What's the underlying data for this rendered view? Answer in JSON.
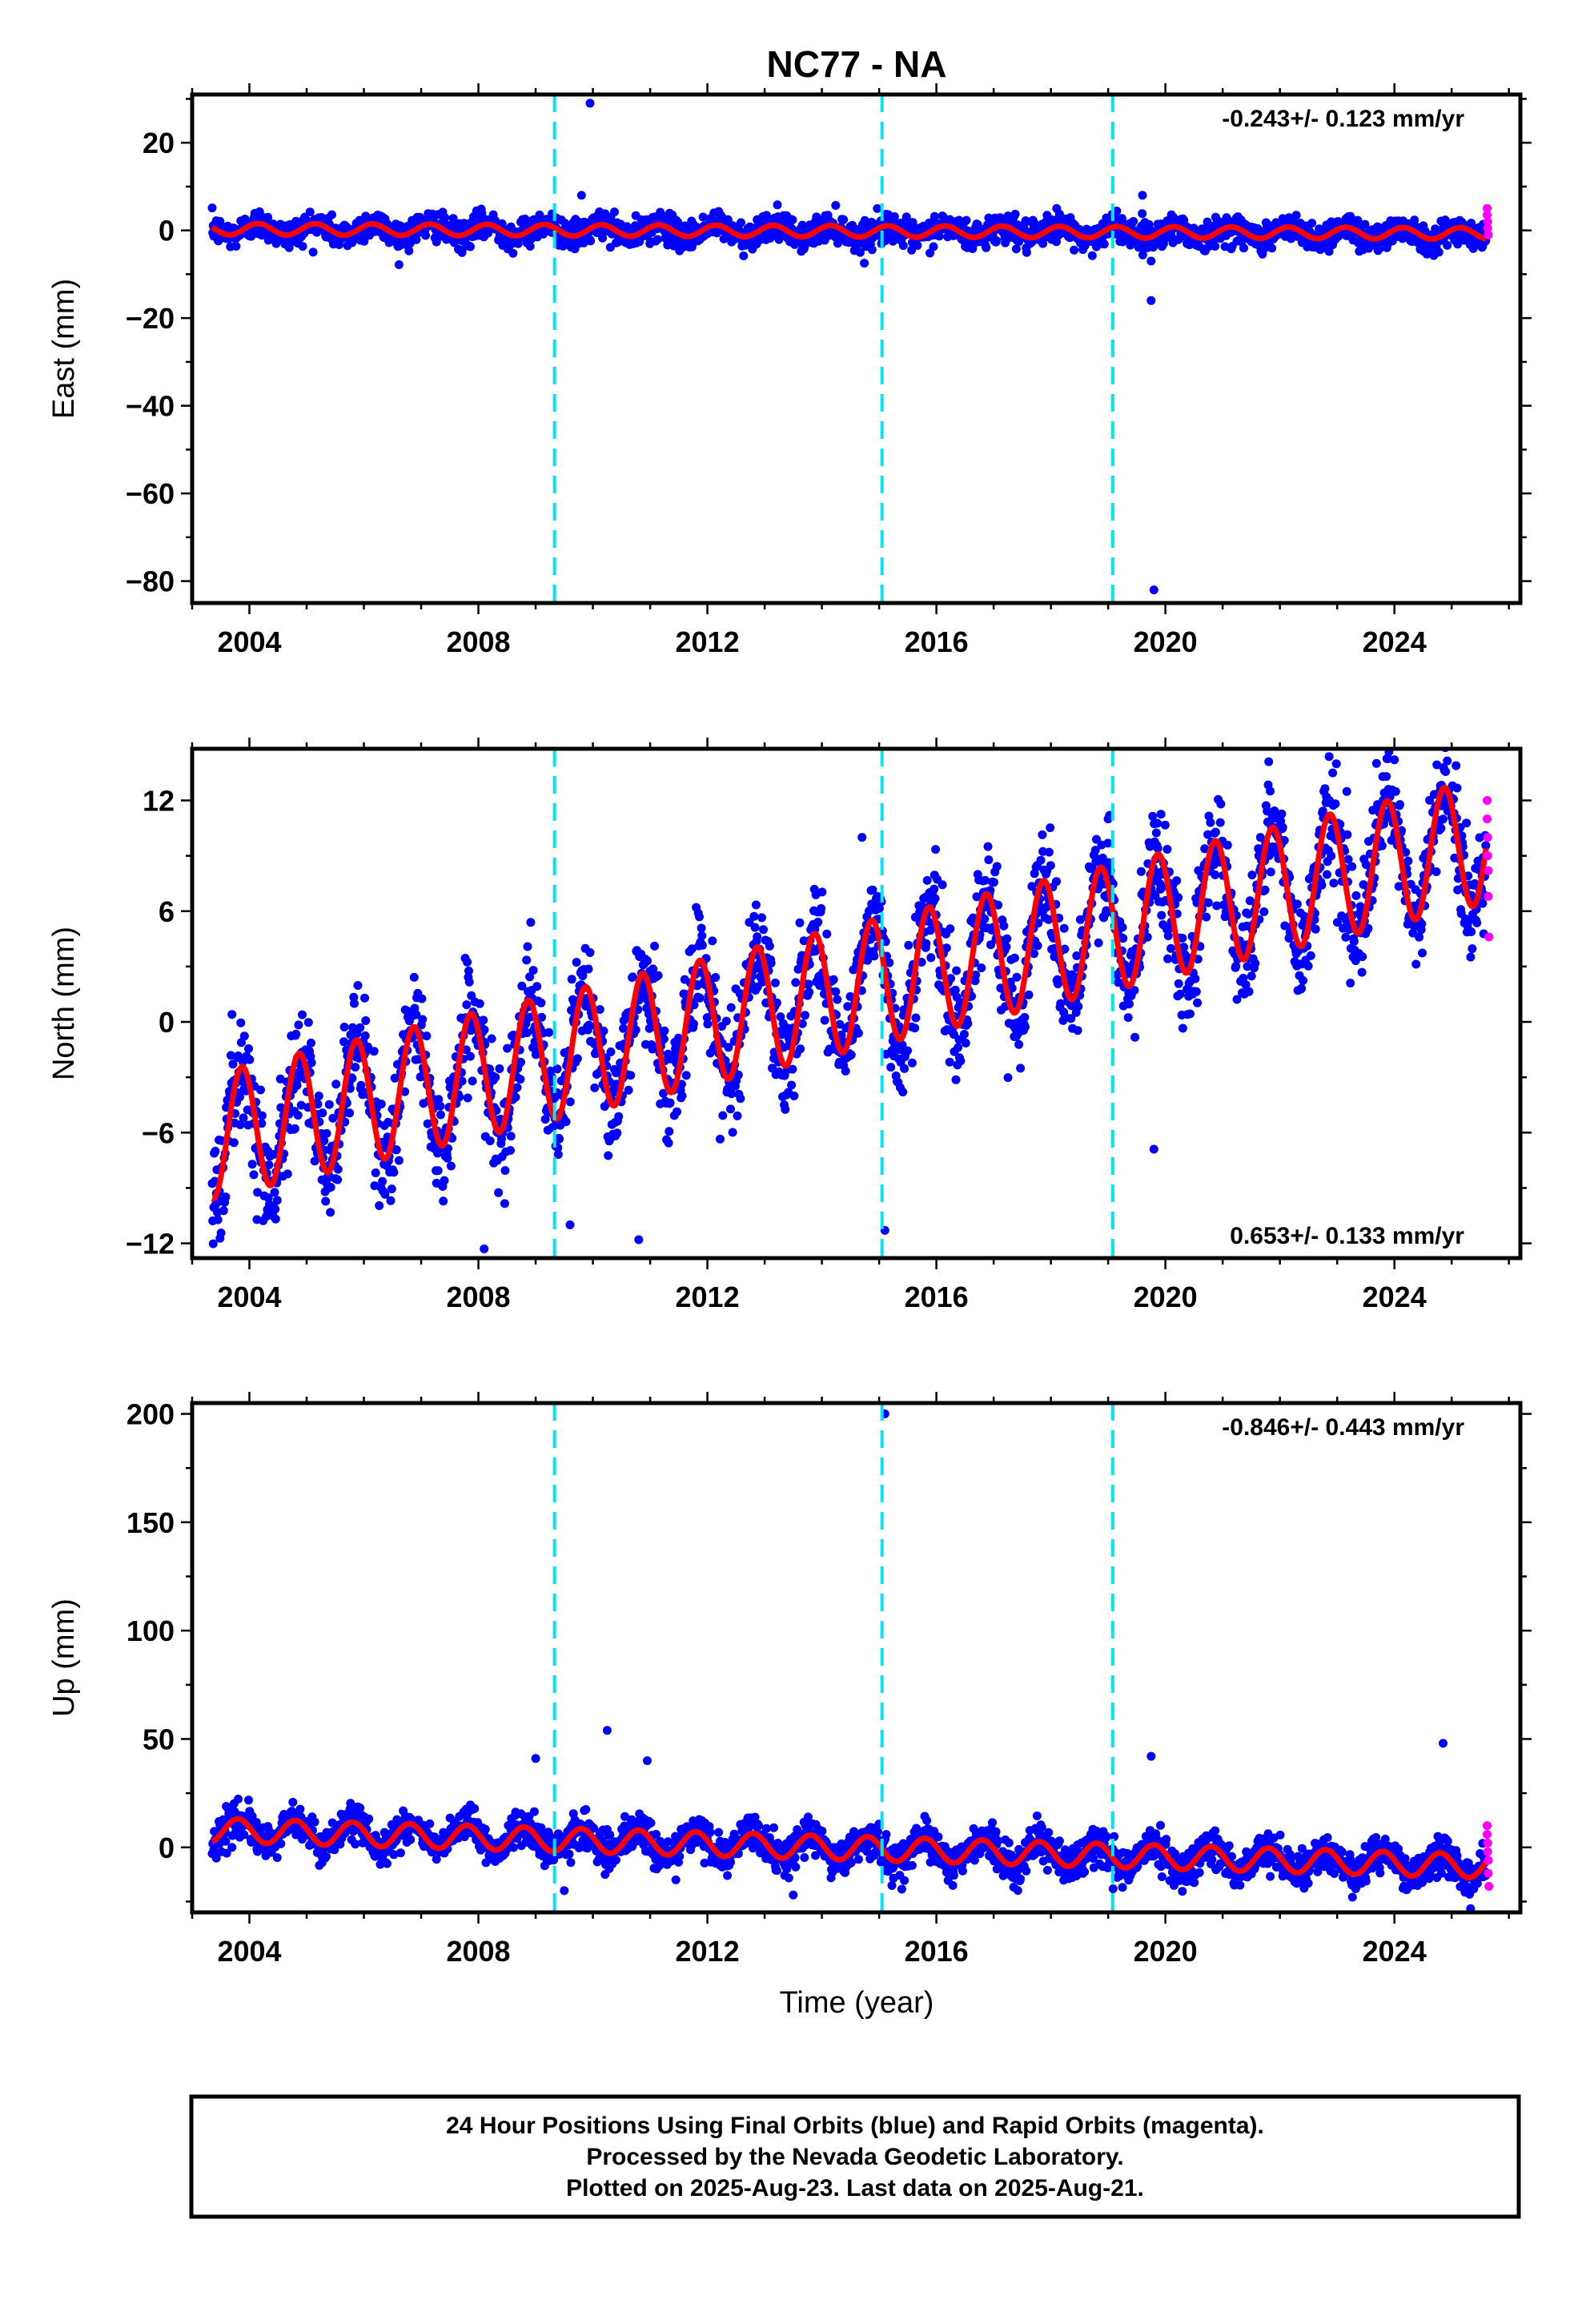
{
  "chart_data": {
    "title": "NC77 - NA",
    "xlabel": "Time (year)",
    "x_ticks": [
      2004,
      2008,
      2012,
      2016,
      2020,
      2024
    ],
    "xlim": [
      2003.0,
      2026.2
    ],
    "reference_lines": [
      2009.33,
      2015.05,
      2019.08
    ],
    "colors": {
      "final": "#0000ff",
      "rapid": "#ff00ff",
      "model": "#ff0000",
      "reference": "#00e5ee"
    },
    "footer": [
      "24 Hour Positions Using Final Orbits (blue) and Rapid Orbits (magenta).",
      "Processed by the Nevada Geodetic Laboratory.",
      "Plotted on 2025-Aug-23. Last data on 2025-Aug-21."
    ],
    "panels": [
      {
        "type": "scatter",
        "ylabel": "East (mm)",
        "ylim": [
          -85,
          31
        ],
        "y_ticks": [
          20,
          0,
          -20,
          -40,
          -60,
          -80
        ],
        "rate": "-0.243+/- 0.123 mm/yr",
        "rate_position": "top-right",
        "model": {
          "offset": 0.3,
          "trend": -0.045,
          "amplitude": 1.3,
          "phase": 0.9,
          "start": 2003.35,
          "end": 2025.6
        },
        "scatter_spread": 1.6,
        "outliers": [
          [
            2009.95,
            29
          ],
          [
            2009.8,
            8
          ],
          [
            2019.6,
            8
          ],
          [
            2019.75,
            -7
          ],
          [
            2019.75,
            -16
          ],
          [
            2019.8,
            -82
          ],
          [
            2018.1,
            5
          ]
        ],
        "rapid_points": [
          [
            2025.62,
            5
          ],
          [
            2025.62,
            3.5
          ],
          [
            2025.63,
            2
          ],
          [
            2025.63,
            0.5
          ],
          [
            2025.64,
            -1
          ]
        ]
      },
      {
        "type": "scatter",
        "ylabel": "North (mm)",
        "ylim": [
          -12.8,
          14.8
        ],
        "y_ticks": [
          12,
          6,
          0,
          -6,
          -12
        ],
        "rate": "0.653+/- 0.133 mm/yr",
        "rate_position": "bottom-right",
        "model": {
          "offset": -6.2,
          "trend": 0.72,
          "amplitude": 3.4,
          "phase": 0.62,
          "start": 2003.35,
          "end": 2025.6
        },
        "scatter_spread": 1.5,
        "outliers": [
          [
            2008.1,
            -12.3
          ],
          [
            2010.8,
            -11.8
          ],
          [
            2015.1,
            -11.3
          ],
          [
            2019.8,
            -6.9
          ],
          [
            2014.7,
            10
          ],
          [
            2016.9,
            9.5
          ],
          [
            2009.6,
            -11
          ],
          [
            2024.0,
            14.2
          ],
          [
            2019.0,
            11
          ]
        ],
        "rapid_points": [
          [
            2025.62,
            12
          ],
          [
            2025.62,
            11
          ],
          [
            2025.63,
            10
          ],
          [
            2025.63,
            9
          ],
          [
            2025.64,
            8.2
          ],
          [
            2025.64,
            6.8
          ],
          [
            2025.65,
            4.6
          ]
        ]
      },
      {
        "type": "scatter",
        "ylabel": "Up (mm)",
        "ylim": [
          -30,
          205
        ],
        "y_ticks": [
          200,
          150,
          100,
          50,
          0
        ],
        "rate": "-0.846+/- 0.443 mm/yr",
        "rate_position": "top-right",
        "model": {
          "offset": 8,
          "trend": -0.75,
          "amplitude": 5.5,
          "phase": 0.55,
          "start": 2003.35,
          "end": 2025.6
        },
        "scatter_spread": 4,
        "outliers": [
          [
            2015.1,
            200
          ],
          [
            2009.0,
            41
          ],
          [
            2010.25,
            54
          ],
          [
            2010.95,
            40
          ],
          [
            2019.75,
            42
          ],
          [
            2024.85,
            48
          ],
          [
            2009.5,
            -20
          ],
          [
            2013.5,
            -22
          ]
        ],
        "rapid_points": [
          [
            2025.62,
            10
          ],
          [
            2025.62,
            6
          ],
          [
            2025.63,
            2
          ],
          [
            2025.63,
            -2
          ],
          [
            2025.64,
            -6
          ],
          [
            2025.64,
            -12
          ],
          [
            2025.65,
            -18
          ]
        ]
      }
    ]
  }
}
